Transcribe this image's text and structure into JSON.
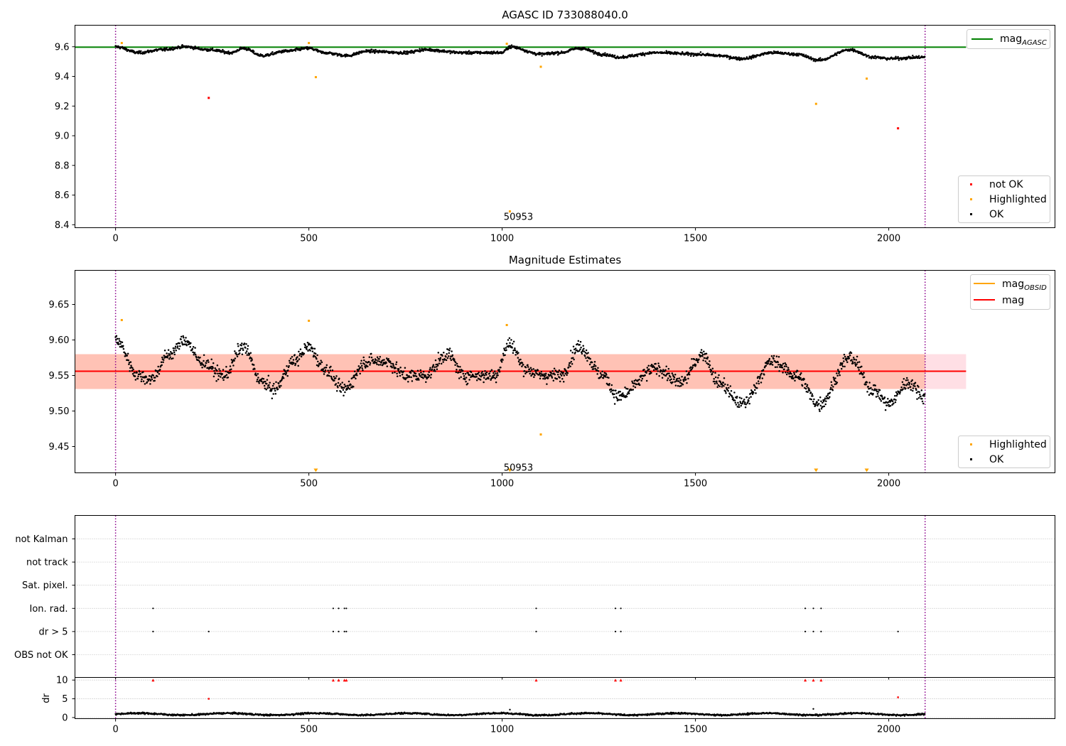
{
  "page": {
    "background": "#ffffff"
  },
  "chart_data": [
    {
      "type": "scatter",
      "title": "AGASC ID 733088040.0",
      "xlim": [
        -105,
        2430
      ],
      "ylim": [
        8.38,
        9.745
      ],
      "xticks": [
        "0",
        "500",
        "1000",
        "1500",
        "2000"
      ],
      "yticks": [
        "8.4",
        "8.6",
        "8.8",
        "9.0",
        "9.2",
        "9.4",
        "9.6"
      ],
      "vlines": {
        "x": [
          0,
          2094
        ],
        "color": "#8b008b",
        "style": "dotted"
      },
      "lines": [
        {
          "name": "mag_AGASC",
          "value": 9.597,
          "x_range": [
            -105,
            2200
          ],
          "color": "#008000"
        }
      ],
      "legend_lines": [
        {
          "base": "mag",
          "sub": "AGASC",
          "color": "#008000"
        }
      ],
      "legend_markers": [
        {
          "label": "not OK",
          "color": "#ff0000"
        },
        {
          "label": "Highlighted",
          "color": "#ffa500"
        },
        {
          "label": "OK",
          "color": "#000000"
        }
      ],
      "ok_trend": {
        "start": 9.6,
        "knots": [
          [
            0,
            9.6
          ],
          [
            60,
            9.56
          ],
          [
            120,
            9.58
          ],
          [
            180,
            9.6
          ],
          [
            240,
            9.58
          ],
          [
            300,
            9.56
          ],
          [
            330,
            9.59
          ],
          [
            380,
            9.54
          ],
          [
            440,
            9.57
          ],
          [
            500,
            9.59
          ],
          [
            540,
            9.56
          ],
          [
            600,
            9.54
          ],
          [
            650,
            9.57
          ],
          [
            750,
            9.56
          ],
          [
            800,
            9.58
          ],
          [
            900,
            9.56
          ],
          [
            1000,
            9.56
          ],
          [
            1020,
            9.6
          ],
          [
            1100,
            9.55
          ],
          [
            1150,
            9.56
          ],
          [
            1200,
            9.59
          ],
          [
            1260,
            9.55
          ],
          [
            1300,
            9.53
          ],
          [
            1400,
            9.56
          ],
          [
            1500,
            9.55
          ],
          [
            1560,
            9.54
          ],
          [
            1620,
            9.52
          ],
          [
            1700,
            9.56
          ],
          [
            1760,
            9.55
          ],
          [
            1820,
            9.51
          ],
          [
            1900,
            9.58
          ],
          [
            1960,
            9.53
          ],
          [
            2000,
            9.52
          ],
          [
            2094,
            9.53
          ]
        ],
        "noise": 0.012,
        "color": "#000000"
      },
      "highlighted": [
        {
          "x": 16,
          "y": 9.625
        },
        {
          "x": 500,
          "y": 9.625
        },
        {
          "x": 518,
          "y": 9.395
        },
        {
          "x": 1012,
          "y": 9.62
        },
        {
          "x": 1020,
          "y": 8.49
        },
        {
          "x": 1100,
          "y": 9.465
        },
        {
          "x": 1812,
          "y": 9.215
        },
        {
          "x": 1943,
          "y": 9.385
        }
      ],
      "not_ok": [
        {
          "x": 241,
          "y": 9.255
        },
        {
          "x": 2024,
          "y": 9.05
        }
      ],
      "annotations": [
        {
          "text": "50953",
          "x": 1020,
          "y": 8.433
        }
      ]
    },
    {
      "type": "scatter",
      "title": "Magnitude Estimates",
      "xlim": [
        -105,
        2430
      ],
      "ylim": [
        9.413,
        9.698
      ],
      "xticks": [
        "0",
        "500",
        "1000",
        "1500",
        "2000"
      ],
      "yticks": [
        "9.45",
        "9.50",
        "9.55",
        "9.60",
        "9.65"
      ],
      "vlines": {
        "x": [
          0,
          2094
        ],
        "color": "#8b008b",
        "style": "dotted"
      },
      "bands": [
        {
          "y0": 9.531,
          "y1": 9.58,
          "x_range": [
            -105,
            2200
          ],
          "color": "#ffc0cb",
          "opacity": 0.5
        },
        {
          "y0": 9.531,
          "y1": 9.58,
          "x_range": [
            -105,
            2094
          ],
          "color": "#ffa07a",
          "opacity": 0.45
        }
      ],
      "lines": [
        {
          "name": "mag",
          "value": 9.556,
          "x_range": [
            -105,
            2200
          ],
          "color": "#ff0000"
        }
      ],
      "legend_lines": [
        {
          "base": "mag",
          "sub": "OBSID",
          "color": "#ffa500"
        },
        {
          "base": "mag",
          "sub": "",
          "color": "#ff0000"
        }
      ],
      "legend_markers": [
        {
          "label": "Highlighted",
          "color": "#ffa500"
        },
        {
          "label": "OK",
          "color": "#000000"
        }
      ],
      "ok_trend": {
        "start": 9.6,
        "knots": [
          [
            0,
            9.6
          ],
          [
            60,
            9.55
          ],
          [
            90,
            9.545
          ],
          [
            140,
            9.58
          ],
          [
            180,
            9.6
          ],
          [
            220,
            9.57
          ],
          [
            280,
            9.55
          ],
          [
            330,
            9.59
          ],
          [
            380,
            9.54
          ],
          [
            410,
            9.53
          ],
          [
            460,
            9.57
          ],
          [
            500,
            9.59
          ],
          [
            540,
            9.56
          ],
          [
            590,
            9.53
          ],
          [
            650,
            9.57
          ],
          [
            700,
            9.57
          ],
          [
            750,
            9.55
          ],
          [
            800,
            9.55
          ],
          [
            860,
            9.58
          ],
          [
            900,
            9.55
          ],
          [
            980,
            9.55
          ],
          [
            1020,
            9.595
          ],
          [
            1060,
            9.56
          ],
          [
            1100,
            9.55
          ],
          [
            1150,
            9.55
          ],
          [
            1200,
            9.59
          ],
          [
            1260,
            9.55
          ],
          [
            1300,
            9.52
          ],
          [
            1400,
            9.56
          ],
          [
            1460,
            9.54
          ],
          [
            1520,
            9.58
          ],
          [
            1560,
            9.54
          ],
          [
            1620,
            9.51
          ],
          [
            1700,
            9.57
          ],
          [
            1760,
            9.55
          ],
          [
            1820,
            9.51
          ],
          [
            1900,
            9.575
          ],
          [
            1960,
            9.53
          ],
          [
            2000,
            9.51
          ],
          [
            2050,
            9.54
          ],
          [
            2094,
            9.52
          ]
        ],
        "noise": 0.012,
        "color": "#000000"
      },
      "highlighted": [
        {
          "x": 16,
          "y": 9.628
        },
        {
          "x": 500,
          "y": 9.627
        },
        {
          "x": 1012,
          "y": 9.621
        },
        {
          "x": 1100,
          "y": 9.467
        }
      ],
      "highlighted_offscale": [
        {
          "x": 518
        },
        {
          "x": 1020
        },
        {
          "x": 1812
        },
        {
          "x": 1943
        }
      ],
      "annotations": [
        {
          "text": "50953",
          "x": 1020,
          "y": 9.42
        }
      ]
    },
    {
      "type": "scatter",
      "title": "",
      "xlim": [
        -105,
        2430
      ],
      "xticks": [
        "0",
        "500",
        "1000",
        "1500",
        "2000"
      ],
      "vlines": {
        "x": [
          0,
          2094
        ],
        "color": "#8b008b",
        "style": "dotted"
      },
      "flag_rows": [
        "not Kalman",
        "not track",
        "Sat. pixel.",
        "Ion. rad.",
        "dr > 5",
        "OBS not OK"
      ],
      "flag_points": {
        "Ion. rad.": [
          97,
          563,
          577,
          592,
          597,
          1088,
          1293,
          1307,
          1784,
          1805,
          1825
        ],
        "dr > 5": [
          97,
          241,
          563,
          577,
          592,
          597,
          1088,
          1293,
          1307,
          1784,
          1805,
          1825,
          2024
        ]
      },
      "dr_panel": {
        "ylabel": "dr",
        "ylim": [
          -0.3,
          10.7
        ],
        "yticks": [
          "0",
          "5",
          "10"
        ],
        "baseline_mean": 0.9,
        "baseline_noise": 0.3,
        "clipped": [
          {
            "x": 97,
            "y": 10
          },
          {
            "x": 563,
            "y": 10
          },
          {
            "x": 577,
            "y": 10
          },
          {
            "x": 592,
            "y": 10
          },
          {
            "x": 597,
            "y": 10
          },
          {
            "x": 1088,
            "y": 10
          },
          {
            "x": 1293,
            "y": 10
          },
          {
            "x": 1307,
            "y": 10
          },
          {
            "x": 1784,
            "y": 10
          },
          {
            "x": 1805,
            "y": 10
          },
          {
            "x": 1825,
            "y": 10
          }
        ],
        "outliers": [
          {
            "x": 241,
            "y": 5
          },
          {
            "x": 2024,
            "y": 5.4
          }
        ],
        "black_extra": [
          {
            "x": 1020,
            "y": 2.1
          },
          {
            "x": 1805,
            "y": 2.3
          }
        ]
      }
    }
  ]
}
